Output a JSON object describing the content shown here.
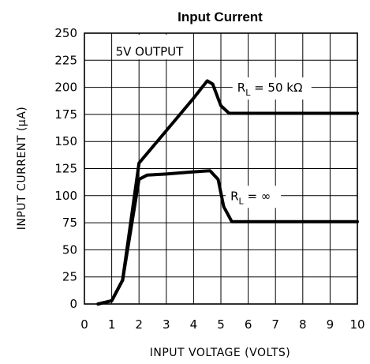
{
  "chart_data": {
    "type": "line",
    "title": "Input Current",
    "xlabel": "INPUT VOLTAGE (VOLTS)",
    "ylabel": "INPUT CURRENT (μA)",
    "xlim": [
      0,
      10
    ],
    "ylim": [
      0,
      250
    ],
    "x_ticks": [
      "0",
      "1",
      "2",
      "3",
      "4",
      "5",
      "6",
      "7",
      "8",
      "9",
      "10"
    ],
    "y_ticks": [
      "0",
      "25",
      "50",
      "75",
      "100",
      "125",
      "150",
      "175",
      "200",
      "225",
      "250"
    ],
    "grid": true,
    "annotation": "5V OUTPUT",
    "series": [
      {
        "name": "R_L = 50 kΩ",
        "label_main": "R",
        "label_sub": "L",
        "label_rest": " = 50 kΩ",
        "points": [
          [
            0.5,
            0
          ],
          [
            1.0,
            3
          ],
          [
            1.4,
            22
          ],
          [
            2.0,
            130
          ],
          [
            3.0,
            160
          ],
          [
            4.0,
            190
          ],
          [
            4.5,
            206
          ],
          [
            4.7,
            203
          ],
          [
            5.0,
            183
          ],
          [
            5.3,
            176
          ],
          [
            6.0,
            176
          ],
          [
            10.0,
            176
          ]
        ]
      },
      {
        "name": "R_L = ∞",
        "label_main": "R",
        "label_sub": "L",
        "label_rest": " = ∞",
        "points": [
          [
            0.5,
            0
          ],
          [
            1.0,
            3
          ],
          [
            1.4,
            22
          ],
          [
            2.0,
            115
          ],
          [
            2.3,
            119
          ],
          [
            3.0,
            120
          ],
          [
            4.0,
            122
          ],
          [
            4.6,
            123
          ],
          [
            4.9,
            115
          ],
          [
            5.1,
            90
          ],
          [
            5.4,
            76
          ],
          [
            6.0,
            76
          ],
          [
            10.0,
            76
          ]
        ]
      }
    ]
  }
}
